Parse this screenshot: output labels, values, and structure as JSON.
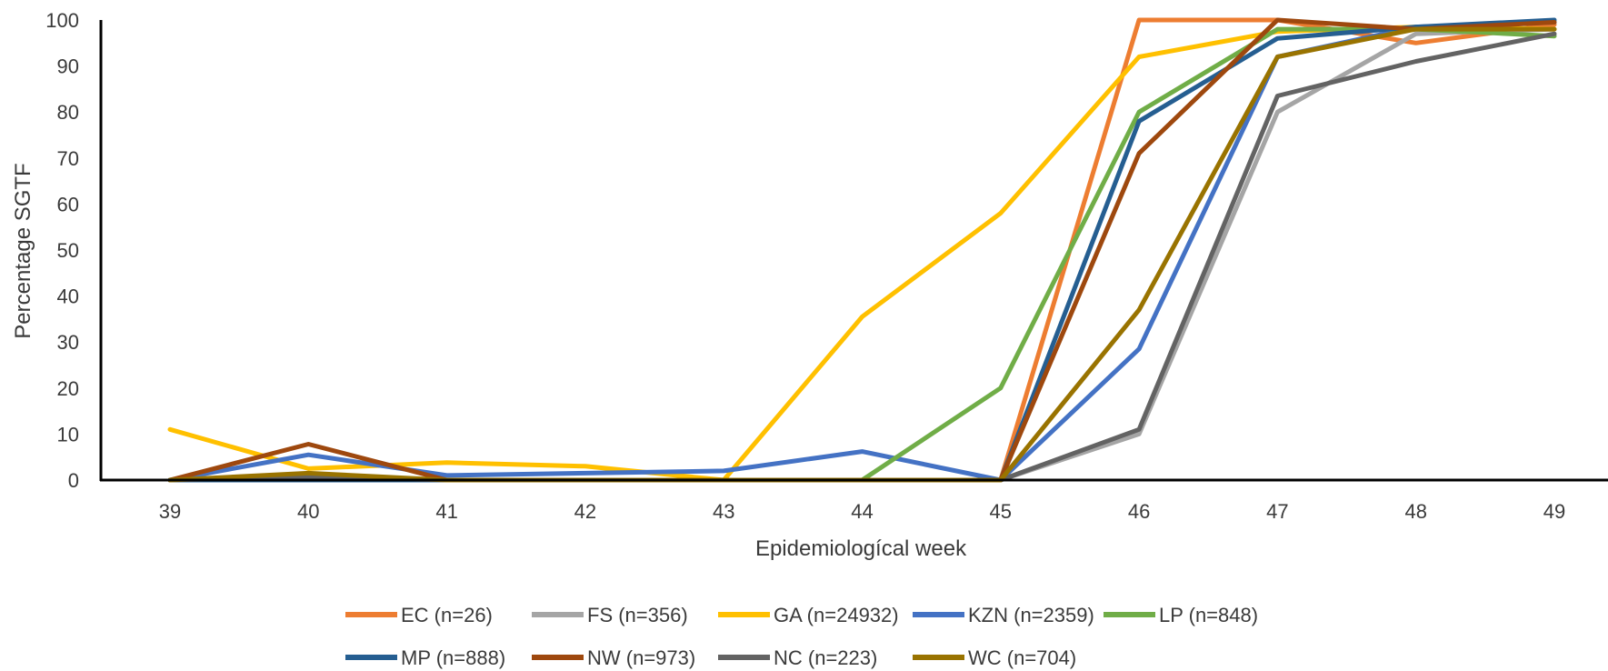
{
  "chart_data": {
    "type": "line",
    "xlabel": "Epidemiologícal week",
    "ylabel": "Percentage SGTF",
    "categories": [
      "39",
      "40",
      "41",
      "42",
      "43",
      "44",
      "45",
      "46",
      "47",
      "48",
      "49"
    ],
    "ylim": [
      0,
      100
    ],
    "yticks": [
      0,
      10,
      20,
      30,
      40,
      50,
      60,
      70,
      80,
      90,
      100
    ],
    "grid": false,
    "legend_position": "bottom",
    "series": [
      {
        "name": "EC (n=26)",
        "color": "#ED7D31",
        "values": [
          0,
          0,
          0,
          0,
          0,
          0,
          0,
          100,
          100,
          95,
          99
        ]
      },
      {
        "name": "FS (n=356)",
        "color": "#A5A5A5",
        "values": [
          0,
          0,
          0,
          0,
          0,
          0,
          0,
          10,
          80,
          97,
          98
        ]
      },
      {
        "name": "GA (n=24932)",
        "color": "#FFC000",
        "values": [
          11,
          2.5,
          3.8,
          3,
          0,
          35.5,
          58,
          92,
          97.5,
          98.5,
          98
        ]
      },
      {
        "name": "KZN (n=2359)",
        "color": "#4472C4",
        "values": [
          0,
          5.5,
          1,
          1.5,
          2,
          6.2,
          0,
          28.5,
          92,
          98.5,
          99.5
        ]
      },
      {
        "name": "LP (n=848)",
        "color": "#70AD47",
        "values": [
          0,
          0,
          0,
          0,
          0,
          0,
          20,
          80,
          98,
          98,
          96.5
        ]
      },
      {
        "name": "MP (n=888)",
        "color": "#255E91",
        "values": [
          0,
          0,
          0,
          0,
          0,
          0,
          0,
          78,
          96,
          98.5,
          100
        ]
      },
      {
        "name": "NW (n=973)",
        "color": "#9E480E",
        "values": [
          0,
          7.8,
          0,
          0,
          0,
          0,
          0,
          71,
          100,
          98,
          99.5
        ]
      },
      {
        "name": "NC (n=223)",
        "color": "#636363",
        "values": [
          0,
          0.8,
          0,
          0,
          0,
          0,
          0,
          11,
          83.5,
          91,
          97
        ]
      },
      {
        "name": "WC (n=704)",
        "color": "#997300",
        "values": [
          0,
          1.5,
          0,
          0,
          0,
          0,
          0,
          37,
          92,
          98,
          98
        ]
      }
    ]
  }
}
